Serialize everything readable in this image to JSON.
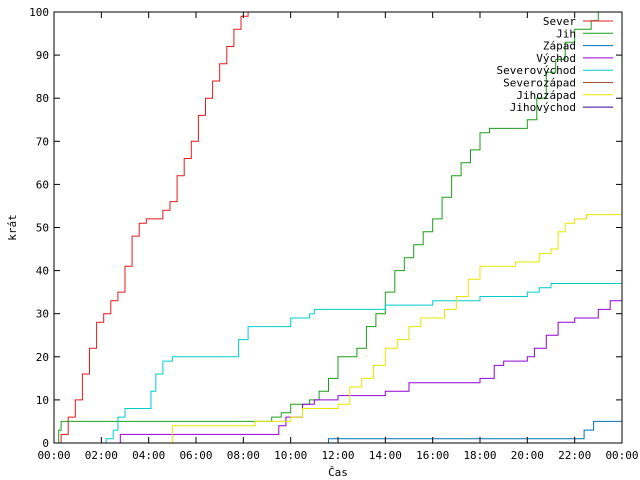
{
  "chart_data": {
    "type": "line",
    "title": "",
    "xlabel": "Čas",
    "ylabel": "krát",
    "xlim": [
      0,
      24
    ],
    "ylim": [
      0,
      100
    ],
    "x_ticks": [
      "00:00",
      "02:00",
      "04:00",
      "06:00",
      "08:00",
      "10:00",
      "12:00",
      "14:00",
      "16:00",
      "18:00",
      "20:00",
      "22:00",
      "00:00"
    ],
    "y_ticks": [
      "0",
      "10",
      "20",
      "30",
      "40",
      "50",
      "60",
      "70",
      "80",
      "90",
      "100"
    ],
    "grid": false,
    "legend_position": "top-right",
    "series": [
      {
        "name": "Sever",
        "color": "#e41a1c",
        "x": [
          0,
          0.3,
          0.6,
          0.9,
          1.2,
          1.5,
          1.8,
          2.1,
          2.4,
          2.7,
          3.0,
          3.3,
          3.6,
          3.9,
          4.2,
          4.6,
          4.9,
          5.2,
          5.5,
          5.8,
          6.1,
          6.4,
          6.7,
          7.0,
          7.3,
          7.6,
          7.9,
          8.2,
          8.3
        ],
        "y": [
          0,
          2,
          6,
          10,
          16,
          22,
          28,
          30,
          33,
          35,
          41,
          48,
          51,
          52,
          52,
          54,
          56,
          62,
          66,
          70,
          76,
          80,
          84,
          88,
          92,
          96,
          99,
          100,
          100
        ]
      },
      {
        "name": "Jih",
        "color": "#1a9e1a",
        "x": [
          0,
          0.2,
          0.3,
          1,
          3,
          5,
          7,
          8.5,
          9.2,
          9.6,
          10,
          10.4,
          10.8,
          11.2,
          11.6,
          12,
          12.4,
          12.8,
          13.2,
          13.6,
          14,
          14.4,
          14.8,
          15.2,
          15.6,
          16,
          16.4,
          16.8,
          17.2,
          17.6,
          18,
          18.4,
          18.8,
          19.2,
          19.6,
          20,
          20.4,
          20.8,
          21.2,
          21.6,
          22,
          22.4,
          22.7,
          23,
          23.3,
          23.6
        ],
        "y": [
          0,
          3,
          5,
          5,
          5,
          5,
          5,
          5,
          6,
          7,
          9,
          9,
          10,
          12,
          15,
          20,
          20,
          22,
          27,
          30,
          35,
          40,
          43,
          46,
          49,
          52,
          57,
          62,
          65,
          68,
          72,
          73,
          73,
          73,
          73,
          75,
          80,
          86,
          89,
          93,
          96,
          96,
          98,
          100,
          100,
          100
        ]
      },
      {
        "name": "Západ",
        "color": "#0072b2",
        "x": [
          0,
          11.5,
          11.6,
          15,
          18,
          21,
          22.1,
          22.4,
          22.8,
          23.5,
          24
        ],
        "y": [
          0,
          0,
          1,
          1,
          1,
          1,
          1,
          3,
          5,
          5,
          5
        ]
      },
      {
        "name": "Východ",
        "color": "#9400d3",
        "x": [
          0,
          2.7,
          2.8,
          5,
          7,
          9.2,
          9.5,
          9.8,
          10.5,
          11,
          12,
          13,
          14,
          15,
          16,
          17,
          18,
          18.6,
          19,
          19.5,
          20,
          20.3,
          20.8,
          21.3,
          22,
          22.6,
          23,
          23.5,
          24
        ],
        "y": [
          0,
          0,
          2,
          2,
          2,
          2,
          4,
          6,
          9,
          10,
          11,
          11,
          12,
          14,
          14,
          14,
          15,
          18,
          19,
          19,
          20,
          22,
          25,
          28,
          29,
          29,
          31,
          33,
          34
        ]
      },
      {
        "name": "Severovýchod",
        "color": "#00cccc",
        "x": [
          0,
          2,
          2.2,
          2.5,
          2.7,
          3.0,
          3.5,
          3.9,
          4.1,
          4.3,
          4.6,
          5.0,
          6.0,
          7.0,
          7.6,
          7.8,
          8.2,
          8.5,
          9.0,
          10.0,
          10.8,
          11.0,
          12.0,
          13.0,
          14.0,
          15.0,
          16.0,
          17.0,
          18.0,
          19.0,
          20.0,
          20.5,
          21.0,
          22.0,
          23.0,
          24.0
        ],
        "y": [
          0,
          0,
          1,
          3,
          6,
          8,
          8,
          8,
          12,
          16,
          19,
          20,
          20,
          20,
          20,
          24,
          27,
          27,
          27,
          29,
          30,
          31,
          31,
          31,
          32,
          32,
          33,
          33,
          34,
          34,
          35,
          36,
          37,
          37,
          37,
          38
        ]
      },
      {
        "name": "Severozápad",
        "color": "#a0522d",
        "x": [],
        "y": []
      },
      {
        "name": "Jihozápad",
        "color": "#e5e500",
        "x": [
          0,
          4.8,
          5.0,
          6,
          7,
          8,
          8.5,
          9,
          9.5,
          10,
          10.5,
          11,
          11.5,
          12,
          12.5,
          13,
          13.5,
          14,
          14.5,
          15,
          15.5,
          16,
          16.5,
          17,
          17.5,
          18,
          19,
          19.5,
          20,
          20.5,
          21,
          21.3,
          21.6,
          22,
          22.5,
          23,
          23.5,
          24
        ],
        "y": [
          0,
          0,
          4,
          4,
          4,
          4,
          5,
          5,
          5,
          6,
          8,
          8,
          8,
          9,
          13,
          15,
          18,
          22,
          24,
          27,
          29,
          29,
          31,
          34,
          38,
          41,
          41,
          42,
          42,
          44,
          45,
          49,
          51,
          52,
          53,
          53,
          53,
          55
        ]
      },
      {
        "name": "Jihovýchod",
        "color": "#3b0096",
        "x": [],
        "y": []
      }
    ]
  }
}
